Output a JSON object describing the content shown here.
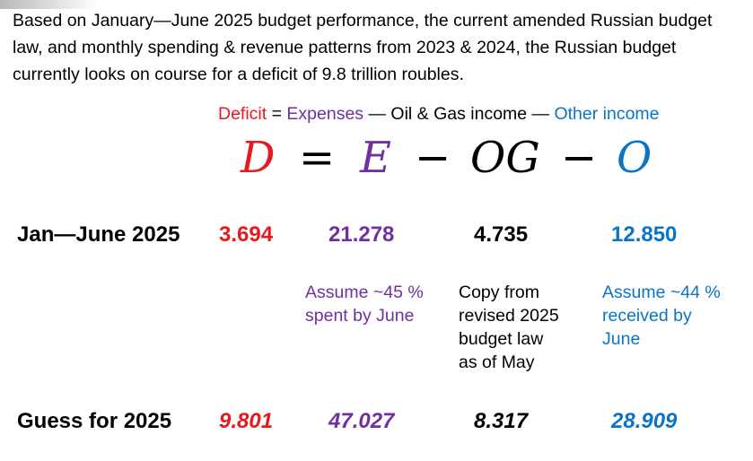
{
  "intro_text": "Based on January—June 2025 budget performance, the current amended Russian budget law, and monthly spending & revenue patterns from 2023 & 2024, the Russian budget currently looks on course for a deficit of 9.8 trillion roubles.",
  "legend": {
    "deficit": "Deficit",
    "eq": " = ",
    "expenses": "Expenses",
    "minus1": " — ",
    "oil_gas": "Oil & Gas income",
    "minus2": " — ",
    "other": "Other income"
  },
  "equation": {
    "d": "D",
    "equals": "=",
    "e": "E",
    "minus1": "−",
    "og": "OG",
    "minus2": "−",
    "o": "O"
  },
  "rows": {
    "jan_june": {
      "label": "Jan—June 2025",
      "deficit": "3.694",
      "expenses": "21.278",
      "oil_gas": "4.735",
      "other": "12.850"
    },
    "guess": {
      "label": "Guess for 2025",
      "deficit": "9.801",
      "expenses": "47.027",
      "oil_gas": "8.317",
      "other": "28.909"
    }
  },
  "notes": {
    "expenses": [
      "Assume ~45 %",
      "spent by June"
    ],
    "oil_gas": [
      "Copy from",
      "revised 2025",
      "budget law",
      "as of May"
    ],
    "other": [
      "Assume ~44 %",
      "received by",
      "June"
    ]
  },
  "colors": {
    "deficit": "#e8191e",
    "expenses": "#7030a0",
    "other": "#0a74c5",
    "oil_gas": "#000000"
  }
}
